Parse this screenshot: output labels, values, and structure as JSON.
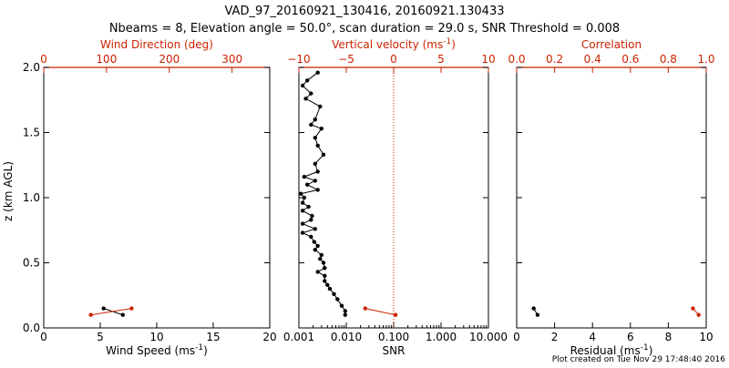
{
  "chart_data": {
    "type": "scatter",
    "title": "VAD_97_20160921_130416, 20160921.130433",
    "subtitle": "Nbeams = 8, Elevation angle = 50.0°, scan duration = 29.0 s, SNR Threshold = 0.008",
    "footer": "Plot created on Tue Nov 29 17:48:40 2016",
    "ylabel": "z (km AGL)",
    "ylim": [
      0,
      2
    ],
    "yticks": [
      "0.0",
      "0.5",
      "1.0",
      "1.5",
      "2.0"
    ],
    "ytick_values": [
      0,
      0.5,
      1.0,
      1.5,
      2.0
    ],
    "colors": {
      "primary": "#000000",
      "secondary": "#cc2200"
    },
    "panels": [
      {
        "name": "wind",
        "xlabel_bottom": "Wind Speed (ms",
        "xlabel_bottom_sup": "-1",
        "xlabel_bottom_end": ")",
        "xlim_bottom": [
          0,
          20
        ],
        "xticks_bottom": [
          "0",
          "5",
          "10",
          "15",
          "20"
        ],
        "xtick_values_bottom": [
          0,
          5,
          10,
          15,
          20
        ],
        "xlabel_top": "Wind Direction (deg)",
        "xlim_top": [
          0,
          360
        ],
        "xticks_top": [
          "0",
          "100",
          "200",
          "300"
        ],
        "xtick_values_top": [
          0,
          100,
          200,
          300
        ],
        "series": [
          {
            "name": "Wind Speed",
            "axis": "bottom",
            "x": [
              5.3,
              7.0
            ],
            "z": [
              0.15,
              0.1
            ]
          },
          {
            "name": "Wind Direction",
            "axis": "top",
            "x": [
              75,
              140
            ],
            "z": [
              0.1,
              0.15
            ]
          }
        ]
      },
      {
        "name": "snr",
        "xscale": "log",
        "xlabel_bottom": "SNR",
        "xlim_bottom": [
          0.001,
          10
        ],
        "xticks_bottom": [
          "0.001",
          "0.010",
          "0.100",
          "1.000",
          "10.000"
        ],
        "xtick_values_bottom": [
          0.001,
          0.01,
          0.1,
          1,
          10
        ],
        "xlabel_top": "Vertical velocity (ms",
        "xlabel_top_sup": "-1",
        "xlabel_top_end": ")",
        "xlim_top": [
          -10,
          10
        ],
        "xticks_top": [
          "−10",
          "−5",
          "0",
          "5",
          "10"
        ],
        "xtick_values_top": [
          -10,
          -5,
          0,
          5,
          10
        ],
        "zero_line_top": 0,
        "series": [
          {
            "name": "SNR",
            "axis": "bottom",
            "x": [
              0.0095,
              0.0095,
              0.008,
              0.0065,
              0.0055,
              0.0045,
              0.004,
              0.0035,
              0.0035,
              0.0025,
              0.0035,
              0.0033,
              0.0028,
              0.003,
              0.0022,
              0.0025,
              0.0021,
              0.0018,
              0.0012,
              0.0022,
              0.0012,
              0.0018,
              0.0019,
              0.0012,
              0.0016,
              0.0012,
              0.0013,
              0.0011,
              0.0025,
              0.0015,
              0.0022,
              0.0013,
              0.0025,
              0.0022,
              0.0033,
              0.0025,
              0.0022,
              0.003,
              0.0018,
              0.0022,
              0.0028,
              0.0014,
              0.0018,
              0.0012,
              0.0015,
              0.0025
            ],
            "z": [
              0.1,
              0.13,
              0.17,
              0.22,
              0.26,
              0.3,
              0.33,
              0.36,
              0.4,
              0.43,
              0.46,
              0.5,
              0.53,
              0.56,
              0.6,
              0.63,
              0.66,
              0.7,
              0.73,
              0.76,
              0.8,
              0.83,
              0.86,
              0.9,
              0.93,
              0.96,
              1.0,
              1.03,
              1.06,
              1.1,
              1.13,
              1.16,
              1.2,
              1.26,
              1.33,
              1.4,
              1.46,
              1.53,
              1.56,
              1.6,
              1.7,
              1.76,
              1.8,
              1.86,
              1.9,
              1.96
            ]
          },
          {
            "name": "Vertical velocity",
            "axis": "top",
            "x": [
              -3.0,
              0.2
            ],
            "z": [
              0.15,
              0.1
            ]
          }
        ]
      },
      {
        "name": "residual",
        "xlabel_bottom": "Residual (ms",
        "xlabel_bottom_sup": "-1",
        "xlabel_bottom_end": ")",
        "xlim_bottom": [
          0,
          10
        ],
        "xticks_bottom": [
          "0",
          "2",
          "4",
          "6",
          "8",
          "10"
        ],
        "xtick_values_bottom": [
          0,
          2,
          4,
          6,
          8,
          10
        ],
        "xlabel_top": "Correlation",
        "xlim_top": [
          0,
          1
        ],
        "xticks_top": [
          "0.0",
          "0.2",
          "0.4",
          "0.6",
          "0.8",
          "1.0"
        ],
        "xtick_values_top": [
          0,
          0.2,
          0.4,
          0.6,
          0.8,
          1.0
        ],
        "series": [
          {
            "name": "Residual",
            "axis": "bottom",
            "x": [
              0.9,
              1.1
            ],
            "z": [
              0.15,
              0.1
            ]
          },
          {
            "name": "Correlation",
            "axis": "top",
            "x": [
              0.93,
              0.96
            ],
            "z": [
              0.15,
              0.1
            ]
          }
        ]
      }
    ]
  }
}
